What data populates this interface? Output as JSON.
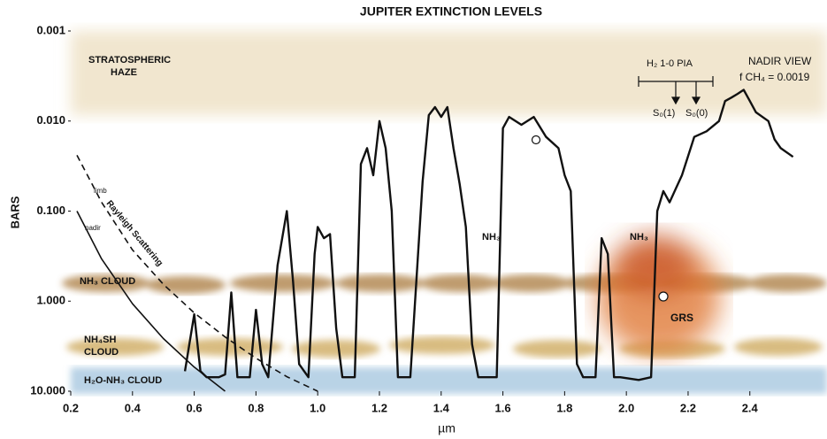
{
  "chart_data": {
    "type": "line",
    "title": "JUPITER EXTINCTION LEVELS",
    "x_label": "µm",
    "y_label": "BARS",
    "y_scale": "log",
    "xlim": [
      0.2,
      2.65
    ],
    "ylim": [
      10,
      0.001
    ],
    "xticks": [
      0.2,
      0.4,
      0.6,
      0.8,
      {
        "value": 1,
        "label": "1.0"
      },
      1.2,
      1.4,
      1.6,
      1.8,
      {
        "value": 2,
        "label": "2.0"
      },
      2.2,
      2.4
    ],
    "yticks": [
      {
        "value": 0.001,
        "label": "0.001"
      },
      {
        "value": 0.01,
        "label": "0.010"
      },
      {
        "value": 0.1,
        "label": "0.100"
      },
      {
        "value": 1,
        "label": "1.000"
      },
      {
        "value": 10,
        "label": "10.000"
      }
    ],
    "series": [
      {
        "color": "#111111",
        "dash": false,
        "width": 2.4,
        "x": [
          0.57,
          0.6,
          0.62,
          0.64,
          0.68,
          0.7,
          0.72,
          0.74,
          0.78,
          0.8,
          0.82,
          0.84,
          0.87,
          0.9,
          0.92,
          0.94,
          0.97,
          0.99,
          1.0,
          1.02,
          1.04,
          1.06,
          1.08,
          1.12,
          1.14,
          1.16,
          1.18,
          1.2,
          1.22,
          1.24,
          1.26,
          1.3,
          1.34,
          1.36,
          1.38,
          1.4,
          1.42,
          1.44,
          1.46,
          1.48,
          1.5,
          1.52,
          1.58,
          1.6,
          1.62,
          1.66,
          1.7,
          1.74,
          1.78,
          1.8,
          1.82,
          1.84,
          1.86,
          1.9,
          1.92,
          1.94,
          1.96,
          1.98,
          2.04,
          2.08,
          2.1,
          2.12,
          2.14,
          2.18,
          2.22,
          2.26,
          2.3,
          2.32,
          2.34,
          2.36,
          2.38,
          2.4,
          2.42,
          2.46,
          2.48,
          2.5,
          2.54
        ],
        "values": [
          6,
          1.4,
          6,
          7,
          7,
          6.5,
          0.8,
          7,
          7,
          1.25,
          5,
          7,
          0.4,
          0.1,
          0.6,
          5,
          7,
          0.3,
          0.15,
          0.2,
          0.18,
          2,
          7,
          7,
          0.03,
          0.02,
          0.04,
          0.01,
          0.02,
          0.1,
          7,
          7,
          0.047,
          0.0086,
          0.007,
          0.009,
          0.007,
          0.02,
          0.05,
          0.15,
          3,
          7,
          7,
          0.012,
          0.009,
          0.011,
          0.009,
          0.015,
          0.02,
          0.04,
          0.06,
          5,
          7,
          7,
          0.2,
          0.3,
          7,
          7,
          7.5,
          7,
          0.1,
          0.06,
          0.08,
          0.04,
          0.015,
          0.013,
          0.01,
          0.006,
          0.0055,
          0.005,
          0.0045,
          0.006,
          0.008,
          0.01,
          0.016,
          0.02,
          0.025
        ]
      },
      {
        "color": "#111111",
        "dash": true,
        "width": 1.6,
        "x": [
          0.22,
          0.3,
          0.4,
          0.5,
          0.6,
          0.7,
          0.8,
          0.9,
          1.0
        ],
        "values": [
          0.024,
          0.08,
          0.27,
          0.65,
          1.35,
          2.5,
          4.3,
          6.9,
          10
        ]
      },
      {
        "color": "#111111",
        "dash": false,
        "width": 1.6,
        "x": [
          0.22,
          0.3,
          0.4,
          0.5,
          0.6,
          0.7
        ],
        "values": [
          0.1,
          0.34,
          1.07,
          2.6,
          5.4,
          10
        ]
      }
    ],
    "annotations": [
      "STRATOSPHERIC",
      "HAZE",
      "NADIR VIEW",
      "f CH₄ = 0.0019",
      "H₂  1-0 PIA",
      "S₀(1)",
      "S₀(0)",
      "NH₃",
      "NH₃",
      "NH₃ CLOUD",
      "NH₄SH",
      "CLOUD",
      "H₂O-NH₃ CLOUD",
      "GRS",
      "limb",
      "nadir",
      "Rayleigh Scattering"
    ]
  }
}
